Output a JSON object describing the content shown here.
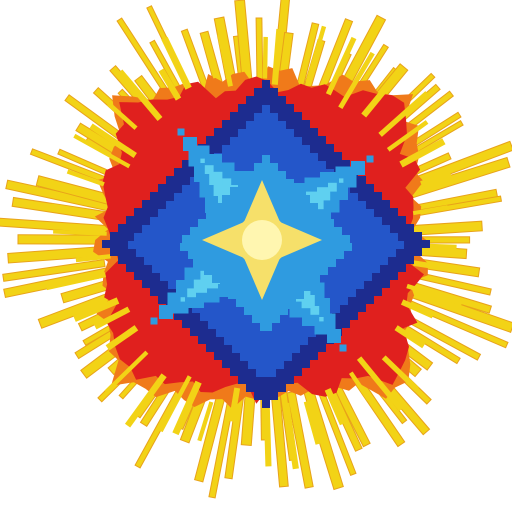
{
  "artwork": {
    "subject": "pixel-burst-icon",
    "colors": {
      "background": "#ffffff",
      "rays": "#f2d316",
      "rays_outline": "#e8a21a",
      "halo": "#e0201e",
      "halo_edge": "#f07a1a",
      "outer_ring": "#1d2c8f",
      "mid_ring": "#2456c9",
      "inner_ring": "#2f9be0",
      "glow": "#5fd0f0",
      "core": "#f6e06a",
      "core_center": "#fff6b0"
    },
    "ray_count": 88
  }
}
